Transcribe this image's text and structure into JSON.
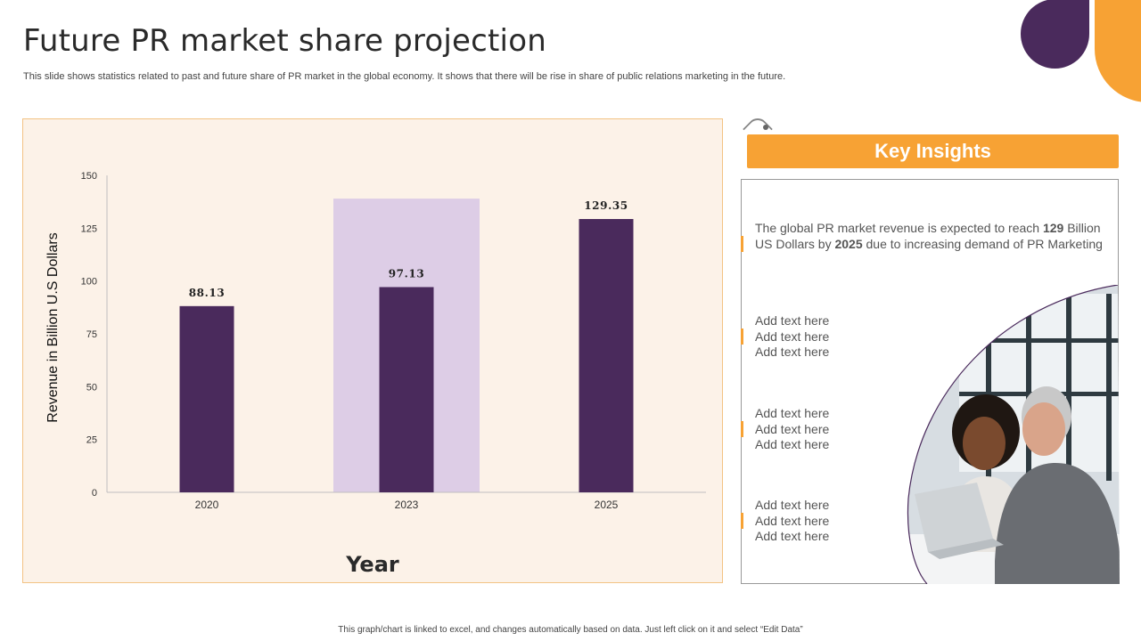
{
  "page": {
    "title": "Future PR market share projection",
    "subtitle": "This slide shows statistics related to past and future share of PR market in the global economy. It shows that there will be rise in share of public relations marketing in the future.",
    "footer": "This graph/chart is linked to excel, and changes automatically based on data. Just left click on it and select “Edit Data”"
  },
  "colors": {
    "accent": "#f7a234",
    "bar": "#4a2a5c",
    "highlight": "#ddcde6",
    "panel": "#fcf2e8"
  },
  "chart_data": {
    "type": "bar",
    "categories": [
      "2020",
      "2023",
      "2025"
    ],
    "values": [
      88.13,
      97.13,
      129.35
    ],
    "data_labels": [
      "88.13",
      "97.13",
      "129.35"
    ],
    "highlight_category": "2023",
    "xlabel": "Year",
    "ylabel": "Revenue in Billion U.S Dollars",
    "ylim": [
      0,
      150
    ],
    "yticks": [
      "0",
      "25",
      "50",
      "75",
      "100",
      "125",
      "150"
    ],
    "grid": false
  },
  "insights": {
    "header": "Key Insights",
    "main_parts": [
      "The global PR market revenue is expected to reach ",
      "129",
      " Billion US Dollars by ",
      "2025",
      " due to increasing demand of PR Marketing"
    ],
    "placeholders": [
      [
        "Add text here",
        "Add text here",
        "Add text here"
      ],
      [
        "Add text here",
        "Add text here",
        "Add text here"
      ],
      [
        "Add text here",
        "Add text here",
        "Add text here"
      ]
    ]
  }
}
